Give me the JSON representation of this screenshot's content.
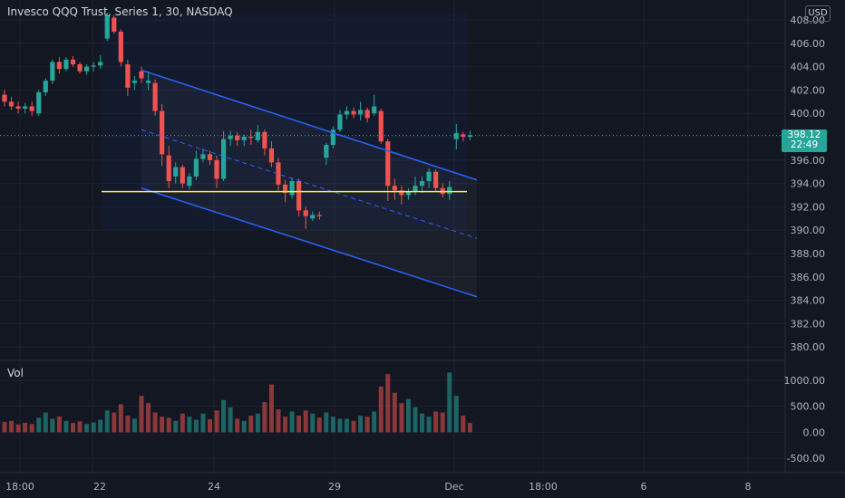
{
  "header": {
    "title": "Invesco QQQ Trust, Series 1, 30, NASDAQ",
    "currency_badge": "USD",
    "volume_label": "Vol"
  },
  "last_price": {
    "price": "398.12",
    "countdown": "22:49"
  },
  "colors": {
    "background": "#131722",
    "up": "#26a69a",
    "down": "#ef5350",
    "channel": "#2962ff",
    "support": "#ffeb3b",
    "grid": "#1e222d",
    "axis_text": "#b2b5be"
  },
  "chart_data": {
    "type": "candlestick",
    "title": "Invesco QQQ Trust, Series 1, 30, NASDAQ",
    "price_axis": {
      "ticks": [
        "408.00",
        "406.00",
        "404.00",
        "402.00",
        "400.00",
        "398.00",
        "396.00",
        "394.00",
        "392.00",
        "390.00",
        "388.00",
        "386.00",
        "384.00",
        "382.00",
        "380.00"
      ],
      "range": [
        378.8,
        409.1
      ]
    },
    "volume_axis": {
      "ticks": [
        "1000.00",
        "500.00",
        "0.00",
        "-500.00"
      ],
      "range": [
        -820,
        1520
      ]
    },
    "time_axis": {
      "ticks": [
        "18:00",
        "22",
        "24",
        "29",
        "Dec",
        "18:00",
        "6",
        "8"
      ]
    },
    "support_line": {
      "price": 393.3
    },
    "channel": {
      "upper": {
        "start": {
          "bar": 20,
          "price": 403.7
        },
        "end": {
          "bar": 69,
          "price": 394.3
        }
      },
      "lower": {
        "start": {
          "bar": 20,
          "price": 393.6
        },
        "end": {
          "bar": 69,
          "price": 384.3
        }
      },
      "mid": {
        "start": {
          "bar": 20,
          "price": 398.6
        },
        "end": {
          "bar": 69,
          "price": 389.3
        }
      }
    },
    "candles_ohlc": [
      [
        401.6,
        402.0,
        400.6,
        401.0
      ],
      [
        401.0,
        401.4,
        400.3,
        400.6
      ],
      [
        400.6,
        401.0,
        400.0,
        400.4
      ],
      [
        400.4,
        400.9,
        400.0,
        400.6
      ],
      [
        400.6,
        401.0,
        399.8,
        400.2
      ],
      [
        400.0,
        402.0,
        399.8,
        401.8
      ],
      [
        401.8,
        403.0,
        401.5,
        402.8
      ],
      [
        402.8,
        404.6,
        402.5,
        404.4
      ],
      [
        404.4,
        404.8,
        403.4,
        403.8
      ],
      [
        403.8,
        404.8,
        403.6,
        404.6
      ],
      [
        404.6,
        404.9,
        404.0,
        404.2
      ],
      [
        404.2,
        404.4,
        403.4,
        403.6
      ],
      [
        403.6,
        404.2,
        403.3,
        404.0
      ],
      [
        404.0,
        404.4,
        403.6,
        404.1
      ],
      [
        404.1,
        405.0,
        403.8,
        404.4
      ],
      [
        406.4,
        408.6,
        406.2,
        408.4
      ],
      [
        408.2,
        408.4,
        406.8,
        407.0
      ],
      [
        407.0,
        407.2,
        404.0,
        404.4
      ],
      [
        404.2,
        404.6,
        401.5,
        402.2
      ],
      [
        402.6,
        403.2,
        402.0,
        402.8
      ],
      [
        403.6,
        404.0,
        402.6,
        403.0
      ],
      [
        402.6,
        403.6,
        402.0,
        402.8
      ],
      [
        402.6,
        402.9,
        399.8,
        400.2
      ],
      [
        400.2,
        400.8,
        395.5,
        396.5
      ],
      [
        396.4,
        397.2,
        393.6,
        394.2
      ],
      [
        394.6,
        395.8,
        394.0,
        395.4
      ],
      [
        395.4,
        395.6,
        393.6,
        394.0
      ],
      [
        393.8,
        394.9,
        393.5,
        394.6
      ],
      [
        394.6,
        396.8,
        394.3,
        396.1
      ],
      [
        396.1,
        397.0,
        395.8,
        396.5
      ],
      [
        396.5,
        396.8,
        395.6,
        396.0
      ],
      [
        396.0,
        396.4,
        393.6,
        394.4
      ],
      [
        394.4,
        398.5,
        394.2,
        397.8
      ],
      [
        397.8,
        398.5,
        397.2,
        398.1
      ],
      [
        398.1,
        398.4,
        397.2,
        397.7
      ],
      [
        397.7,
        398.2,
        397.2,
        398.0
      ],
      [
        398.0,
        398.6,
        397.3,
        397.9
      ],
      [
        397.7,
        399.0,
        397.5,
        398.4
      ],
      [
        398.4,
        398.6,
        396.4,
        397.0
      ],
      [
        397.0,
        397.6,
        395.4,
        395.8
      ],
      [
        395.8,
        396.2,
        393.4,
        393.9
      ],
      [
        393.9,
        394.3,
        392.4,
        393.2
      ],
      [
        393.0,
        394.5,
        392.7,
        394.2
      ],
      [
        394.2,
        394.4,
        391.2,
        391.7
      ],
      [
        391.7,
        392.0,
        390.1,
        391.2
      ],
      [
        391.0,
        391.6,
        390.8,
        391.3
      ],
      [
        391.3,
        391.6,
        390.9,
        391.2
      ],
      [
        396.2,
        397.5,
        395.6,
        397.3
      ],
      [
        397.3,
        398.9,
        397.0,
        398.6
      ],
      [
        398.6,
        400.3,
        398.4,
        399.9
      ],
      [
        399.9,
        400.6,
        399.5,
        400.2
      ],
      [
        400.2,
        400.5,
        399.6,
        399.9
      ],
      [
        399.9,
        401.0,
        399.4,
        400.3
      ],
      [
        400.3,
        400.5,
        399.2,
        399.6
      ],
      [
        400.0,
        401.6,
        399.8,
        400.6
      ],
      [
        400.2,
        400.4,
        397.4,
        397.6
      ],
      [
        397.6,
        397.8,
        392.5,
        393.8
      ],
      [
        393.8,
        394.4,
        392.6,
        393.4
      ],
      [
        393.4,
        393.8,
        392.2,
        393.0
      ],
      [
        393.0,
        393.6,
        392.6,
        393.3
      ],
      [
        393.3,
        394.6,
        393.0,
        393.8
      ],
      [
        393.8,
        394.6,
        393.2,
        394.2
      ],
      [
        394.2,
        395.3,
        393.6,
        395.0
      ],
      [
        395.0,
        395.2,
        393.3,
        393.6
      ],
      [
        393.6,
        394.0,
        392.8,
        393.1
      ],
      [
        393.1,
        394.2,
        392.6,
        393.7
      ],
      [
        397.8,
        399.1,
        396.9,
        398.3
      ],
      [
        398.2,
        398.4,
        397.6,
        398.0
      ],
      [
        398.0,
        398.5,
        397.7,
        398.12
      ]
    ],
    "volume": [
      200,
      220,
      150,
      180,
      160,
      280,
      380,
      260,
      300,
      220,
      180,
      210,
      160,
      190,
      240,
      420,
      380,
      540,
      320,
      260,
      700,
      560,
      380,
      300,
      280,
      220,
      360,
      300,
      240,
      360,
      250,
      420,
      620,
      480,
      260,
      220,
      320,
      360,
      580,
      920,
      440,
      300,
      400,
      320,
      420,
      360,
      280,
      380,
      300,
      260,
      260,
      220,
      320,
      300,
      400,
      880,
      1120,
      760,
      560,
      640,
      480,
      360,
      300,
      400,
      380,
      1150,
      700,
      320,
      180
    ],
    "volume_up_bars": [
      5,
      6,
      7,
      9,
      12,
      13,
      14,
      15,
      19,
      25,
      27,
      28,
      29,
      32,
      33,
      35,
      37,
      42,
      45,
      47,
      48,
      49,
      50,
      52,
      54,
      59,
      60,
      61,
      62,
      65,
      66
    ]
  }
}
